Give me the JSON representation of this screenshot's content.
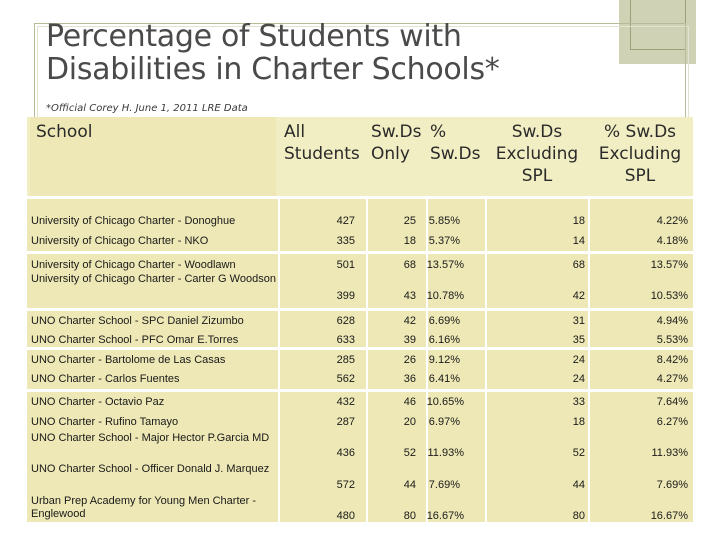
{
  "slide": {
    "title_line1": "Percentage of Students with",
    "title_line2": "Disabilities in Charter Schools*",
    "subtitle": "*Official Corey H. June 1, 2011 LRE Data"
  },
  "table": {
    "headers": {
      "school": "School",
      "all_students": [
        "All",
        "Students"
      ],
      "swds_only": [
        "Sw.Ds",
        "Only"
      ],
      "pct_swds": [
        "%",
        "Sw.Ds"
      ],
      "swds_excluding_spl": [
        "Sw.Ds",
        "Excluding",
        "SPL"
      ],
      "pct_swds_excluding_spl": [
        "% Sw.Ds",
        "Excluding",
        "SPL"
      ]
    },
    "rows": [
      {
        "school": "University of Chicago Charter - Donoghue",
        "all": "427",
        "swds": "25",
        "pct": "5.85%",
        "excl": "18",
        "pct_excl": "4.22%"
      },
      {
        "school": "University of Chicago Charter - NKO",
        "all": "335",
        "swds": "18",
        "pct": "5.37%",
        "excl": "14",
        "pct_excl": "4.18%"
      },
      {
        "school": "University of Chicago Charter - Woodlawn",
        "all": "501",
        "swds": "68",
        "pct": "13.57%",
        "excl": "68",
        "pct_excl": "13.57%"
      },
      {
        "school": "University of Chicago Charter - Carter G Woodson",
        "all": "399",
        "swds": "43",
        "pct": "10.78%",
        "excl": "42",
        "pct_excl": "10.53%"
      },
      {
        "school": "UNO Charter School - SPC Daniel Zizumbo",
        "all": "628",
        "swds": "42",
        "pct": "6.69%",
        "excl": "31",
        "pct_excl": "4.94%"
      },
      {
        "school": "UNO Charter School - PFC Omar E.Torres",
        "all": "633",
        "swds": "39",
        "pct": "6.16%",
        "excl": "35",
        "pct_excl": "5.53%"
      },
      {
        "school": "UNO Charter - Bartolome de Las Casas",
        "all": "285",
        "swds": "26",
        "pct": "9.12%",
        "excl": "24",
        "pct_excl": "8.42%"
      },
      {
        "school": "UNO Charter - Carlos Fuentes",
        "all": "562",
        "swds": "36",
        "pct": "6.41%",
        "excl": "24",
        "pct_excl": "4.27%"
      },
      {
        "school": "UNO Charter - Octavio Paz",
        "all": "432",
        "swds": "46",
        "pct": "10.65%",
        "excl": "33",
        "pct_excl": "7.64%"
      },
      {
        "school": "UNO Charter - Rufino Tamayo",
        "all": "287",
        "swds": "20",
        "pct": "6.97%",
        "excl": "18",
        "pct_excl": "6.27%"
      },
      {
        "school": "UNO Charter School - Major Hector P.Garcia MD",
        "all": "436",
        "swds": "52",
        "pct": "11.93%",
        "excl": "52",
        "pct_excl": "11.93%"
      },
      {
        "school": "UNO Charter School - Officer Donald J. Marquez",
        "all": "572",
        "swds": "44",
        "pct": "7.69%",
        "excl": "44",
        "pct_excl": "7.69%"
      },
      {
        "school": "Urban Prep Academy for Young Men Charter - Englewood",
        "all": "480",
        "swds": "80",
        "pct": "16.67%",
        "excl": "80",
        "pct_excl": "16.67%"
      }
    ]
  },
  "colors": {
    "table_fill": "#ede8b5",
    "header_fill": "#f2eec3",
    "corner_accent": "#cfd2b4",
    "title_text": "#4a4a4a"
  }
}
